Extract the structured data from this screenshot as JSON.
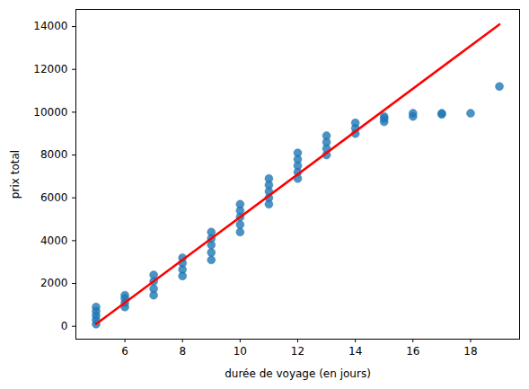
{
  "chart_data": {
    "type": "scatter",
    "x_label": "durée de voyage (en jours)",
    "y_label": "prix total",
    "x": [
      5,
      5,
      5,
      5,
      5,
      6,
      6,
      6,
      6,
      7,
      7,
      7,
      7,
      8,
      8,
      8,
      8,
      9,
      9,
      9,
      9,
      9,
      10,
      10,
      10,
      10,
      10,
      11,
      11,
      11,
      11,
      11,
      12,
      12,
      12,
      12,
      12,
      13,
      13,
      13,
      13,
      14,
      14,
      14,
      15,
      15,
      15,
      16,
      16,
      17,
      17,
      18,
      19
    ],
    "values": [
      100,
      300,
      500,
      700,
      900,
      900,
      1100,
      1300,
      1450,
      1450,
      1750,
      2100,
      2400,
      2350,
      2650,
      2950,
      3200,
      3100,
      3450,
      3800,
      4100,
      4400,
      4400,
      4750,
      5100,
      5400,
      5700,
      5700,
      6000,
      6300,
      6600,
      6900,
      6900,
      7200,
      7500,
      7800,
      8100,
      8000,
      8300,
      8600,
      8900,
      9000,
      9250,
      9500,
      9550,
      9700,
      9800,
      9800,
      9950,
      9900,
      9950,
      9950,
      11200
    ],
    "color": "#1f77b4",
    "marker": "circle",
    "trend": {
      "type": "line",
      "x": [
        5,
        19
      ],
      "values": [
        100,
        14100
      ],
      "color": "red",
      "line_style": "solid"
    },
    "xlim": [
      4.3,
      19.7
    ],
    "xticks": [
      6,
      8,
      10,
      12,
      14,
      16,
      18
    ],
    "ylim": [
      -600,
      14800
    ],
    "yticks": [
      0,
      2000,
      4000,
      6000,
      8000,
      10000,
      12000,
      14000
    ],
    "grid": false
  }
}
